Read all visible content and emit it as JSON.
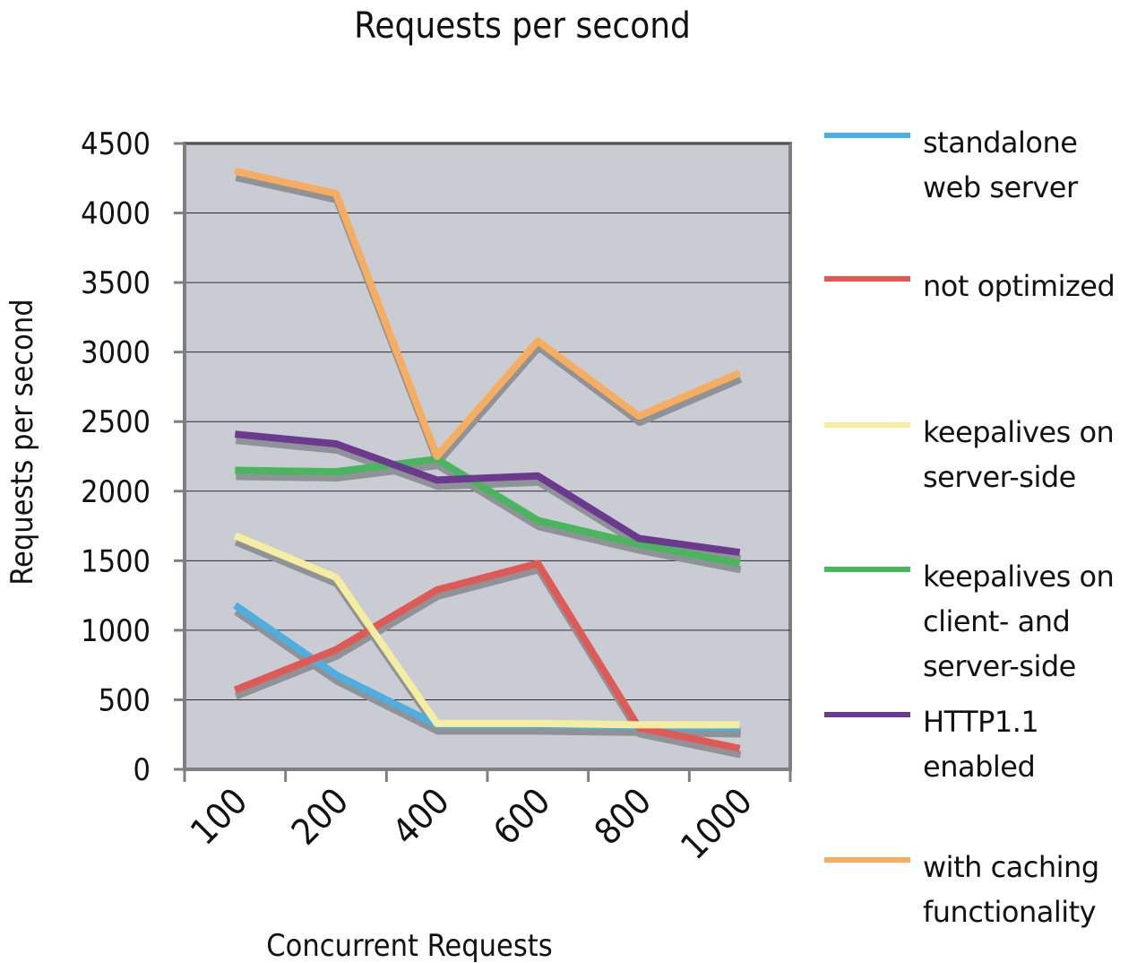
{
  "chart_data": {
    "type": "line",
    "title": "Requests per second",
    "xlabel": "Concurrent Requests",
    "ylabel": "Requests per second",
    "categories": [
      "100",
      "200",
      "400",
      "600",
      "800",
      "1000"
    ],
    "ylim": [
      0,
      4500
    ],
    "yticks": [
      "0",
      "500",
      "1000",
      "1500",
      "2000",
      "2500",
      "3000",
      "3500",
      "4000",
      "4500"
    ],
    "grid": true,
    "legend_position": "right",
    "series": [
      {
        "name": "standalone web server",
        "color": "#4eaee0",
        "values": [
          1180,
          680,
          320,
          320,
          310,
          300
        ]
      },
      {
        "name": "not optimized",
        "color": "#e05a55",
        "values": [
          570,
          860,
          1290,
          1480,
          300,
          150
        ]
      },
      {
        "name": "keepalives on server-side",
        "color": "#f5eea0",
        "values": [
          1680,
          1380,
          330,
          330,
          320,
          320
        ]
      },
      {
        "name": "keepalives on client- and server-side",
        "color": "#49b65e",
        "values": [
          2150,
          2140,
          2230,
          1790,
          1620,
          1480
        ]
      },
      {
        "name": "HTTP1.1 enabled",
        "color": "#6b3a8e",
        "values": [
          2410,
          2340,
          2080,
          2110,
          1660,
          1560
        ]
      },
      {
        "name": "with caching functionality",
        "color": "#f7ad60",
        "values": [
          4300,
          4140,
          2250,
          3080,
          2540,
          2850
        ]
      }
    ]
  },
  "style": {
    "plot_background": "#c9cdd3",
    "shadow_color": "#8f9296",
    "axis_color": "#7d7f82"
  }
}
